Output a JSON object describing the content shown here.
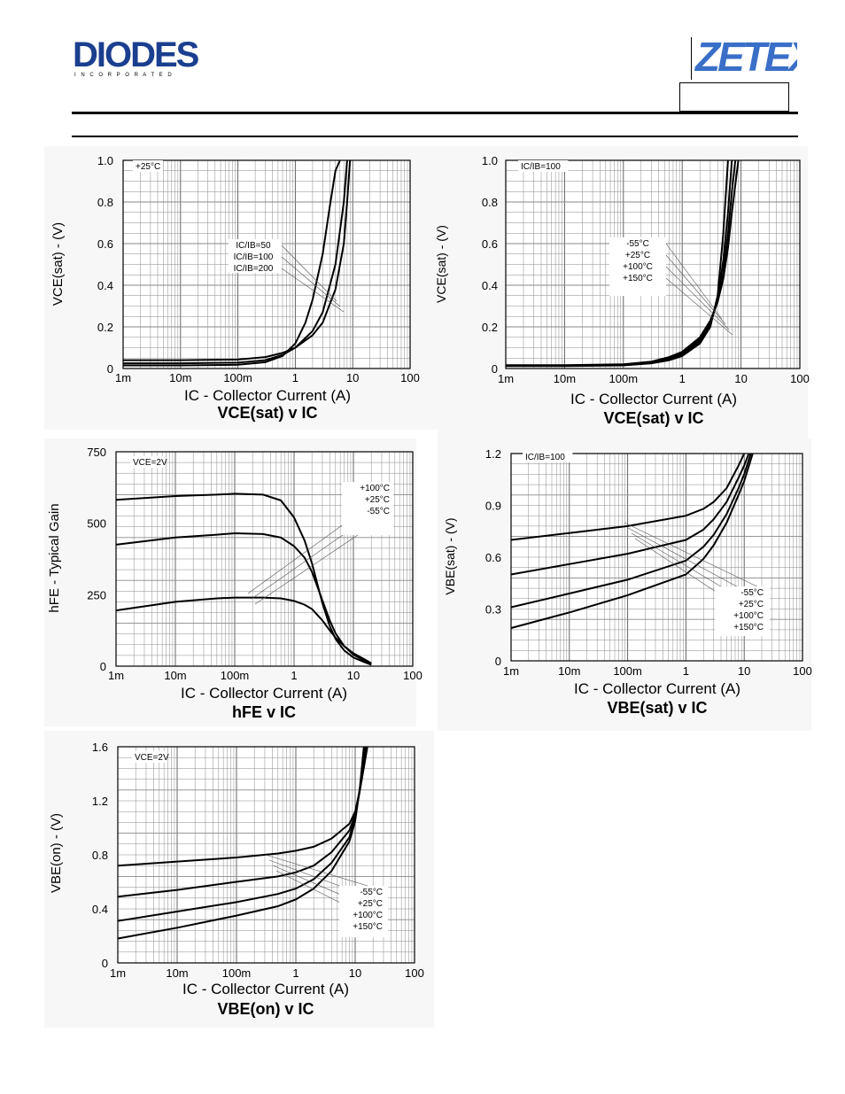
{
  "header": {
    "brand_left": "DIODES",
    "brand_left_sub": "I N C O R P O R A T E D",
    "brand_right": "ZETEX",
    "brand_color_left": "#1b3f8f",
    "brand_color_right": "#3a6fc8"
  },
  "charts": [
    {
      "caption_main": "VCE(sat)",
      "caption_tail": " v IC",
      "ylabel": "VCE(sat) - (V)",
      "xlabel": "IC - Collector Current (A)",
      "condition": "+25°C",
      "yticks": [
        "1.0",
        "0.8",
        "0.6",
        "0.4",
        "0.2",
        "0"
      ],
      "xticks": [
        "1m",
        "10m",
        "100m",
        "1",
        "10",
        "100"
      ],
      "legend": [
        "IC/IB=50",
        "IC/IB=100",
        "IC/IB=200"
      ]
    },
    {
      "caption_main": "VCE(sat)",
      "caption_tail": " v IC",
      "ylabel": "VCE(sat) - (V)",
      "xlabel": "IC - Collector Current (A)",
      "condition": "IC/IB=100",
      "yticks": [
        "1.0",
        "0.8",
        "0.6",
        "0.4",
        "0.2",
        "0"
      ],
      "xticks": [
        "1m",
        "10m",
        "100m",
        "1",
        "10",
        "100"
      ],
      "legend": [
        "-55°C",
        "+25°C",
        "+100°C",
        "+150°C"
      ]
    },
    {
      "caption_main": "hFE",
      "caption_tail": " v IC",
      "ylabel": "hFE - Typical Gain",
      "xlabel": "IC - Collector Current (A)",
      "condition": "VCE=2V",
      "yticks": [
        "750",
        "500",
        "250",
        "0"
      ],
      "xticks": [
        "1m",
        "10m",
        "100m",
        "1",
        "10",
        "100"
      ],
      "legend": [
        "+100°C",
        "+25°C",
        "-55°C"
      ]
    },
    {
      "caption_main": "VBE(sat)",
      "caption_tail": " v IC",
      "ylabel": "VBE(sat) - (V)",
      "xlabel": "IC - Collector Current (A)",
      "condition": "IC/IB=100",
      "yticks": [
        "1.2",
        "0.9",
        "0.6",
        "0.3",
        "0"
      ],
      "xticks": [
        "1m",
        "10m",
        "100m",
        "1",
        "10",
        "100"
      ],
      "legend": [
        "-55°C",
        "+25°C",
        "+100°C",
        "+150°C"
      ]
    },
    {
      "caption_main": "VBE(on)",
      "caption_tail": " v IC",
      "ylabel": "VBE(on) - (V)",
      "xlabel": "IC - Collector Current (A)",
      "condition": "VCE=2V",
      "yticks": [
        "1.6",
        "1.2",
        "0.8",
        "0.4",
        "0"
      ],
      "xticks": [
        "1m",
        "10m",
        "100m",
        "1",
        "10",
        "100"
      ],
      "legend": [
        "-55°C",
        "+25°C",
        "+100°C",
        "+150°C"
      ]
    }
  ],
  "chart_data": [
    {
      "type": "line",
      "title": "VCE(sat) v IC",
      "xlabel": "IC - Collector Current (A)",
      "ylabel": "VCE(sat) - (V)",
      "xscale": "log",
      "xlim": [
        0.001,
        100
      ],
      "ylim": [
        0,
        1.0
      ],
      "grid": true,
      "series": [
        {
          "name": "IC/IB=50",
          "x": [
            0.001,
            0.01,
            0.1,
            0.3,
            0.6,
            1,
            1.5,
            2,
            3,
            4,
            5,
            6
          ],
          "y": [
            0.015,
            0.015,
            0.018,
            0.03,
            0.06,
            0.12,
            0.22,
            0.33,
            0.55,
            0.78,
            0.95,
            1.0
          ]
        },
        {
          "name": "IC/IB=100",
          "x": [
            0.001,
            0.01,
            0.1,
            0.3,
            0.6,
            1,
            2,
            3,
            5,
            7,
            8
          ],
          "y": [
            0.025,
            0.025,
            0.028,
            0.04,
            0.065,
            0.1,
            0.18,
            0.27,
            0.5,
            0.8,
            1.0
          ]
        },
        {
          "name": "IC/IB=200",
          "x": [
            0.001,
            0.01,
            0.1,
            0.3,
            0.6,
            1,
            2,
            3,
            5,
            7,
            8,
            9
          ],
          "y": [
            0.04,
            0.04,
            0.043,
            0.055,
            0.075,
            0.1,
            0.16,
            0.22,
            0.38,
            0.6,
            0.8,
            1.0
          ]
        }
      ]
    },
    {
      "type": "line",
      "title": "VCE(sat) v IC",
      "xlabel": "IC - Collector Current (A)",
      "ylabel": "VCE(sat) - (V)",
      "xscale": "log",
      "xlim": [
        0.001,
        100
      ],
      "ylim": [
        0,
        1.0
      ],
      "grid": true,
      "series": [
        {
          "name": "-55°C",
          "x": [
            0.001,
            0.01,
            0.1,
            0.3,
            0.6,
            1,
            2,
            3,
            4,
            5,
            6
          ],
          "y": [
            0.012,
            0.012,
            0.015,
            0.025,
            0.04,
            0.06,
            0.12,
            0.2,
            0.35,
            0.65,
            1.0
          ]
        },
        {
          "name": "+25°C",
          "x": [
            0.001,
            0.01,
            0.1,
            0.3,
            0.6,
            1,
            2,
            3,
            4,
            5,
            6,
            7
          ],
          "y": [
            0.013,
            0.013,
            0.016,
            0.027,
            0.045,
            0.065,
            0.13,
            0.21,
            0.33,
            0.52,
            0.75,
            1.0
          ]
        },
        {
          "name": "+100°C",
          "x": [
            0.001,
            0.01,
            0.1,
            0.3,
            0.6,
            1,
            2,
            3,
            4,
            5,
            6,
            7,
            8
          ],
          "y": [
            0.015,
            0.015,
            0.018,
            0.03,
            0.05,
            0.072,
            0.14,
            0.22,
            0.32,
            0.46,
            0.65,
            0.85,
            1.0
          ]
        },
        {
          "name": "+150°C",
          "x": [
            0.001,
            0.01,
            0.1,
            0.3,
            0.6,
            1,
            2,
            3,
            4,
            5,
            6,
            7,
            9
          ],
          "y": [
            0.016,
            0.016,
            0.02,
            0.033,
            0.055,
            0.08,
            0.15,
            0.23,
            0.32,
            0.43,
            0.58,
            0.75,
            1.0
          ]
        }
      ]
    },
    {
      "type": "line",
      "title": "hFE v IC",
      "xlabel": "IC - Collector Current (A)",
      "ylabel": "hFE - Typical Gain",
      "xscale": "log",
      "xlim": [
        0.001,
        100
      ],
      "ylim": [
        0,
        750
      ],
      "grid": true,
      "series": [
        {
          "name": "+100°C",
          "x": [
            0.001,
            0.01,
            0.05,
            0.1,
            0.3,
            0.6,
            1,
            1.5,
            2,
            3,
            4,
            5,
            7,
            10,
            15,
            20
          ],
          "y": [
            582,
            595,
            600,
            603,
            600,
            580,
            520,
            440,
            360,
            220,
            140,
            95,
            55,
            30,
            15,
            5
          ]
        },
        {
          "name": "+25°C",
          "x": [
            0.001,
            0.01,
            0.05,
            0.1,
            0.3,
            0.6,
            1,
            1.5,
            2,
            3,
            4,
            5,
            7,
            10,
            15,
            20
          ],
          "y": [
            425,
            450,
            460,
            465,
            462,
            450,
            420,
            380,
            330,
            230,
            160,
            115,
            70,
            40,
            20,
            8
          ]
        },
        {
          "name": "-55°C",
          "x": [
            0.001,
            0.01,
            0.05,
            0.1,
            0.3,
            0.6,
            1,
            1.5,
            2,
            3,
            4,
            5,
            7,
            10,
            15,
            20
          ],
          "y": [
            195,
            225,
            237,
            240,
            240,
            237,
            228,
            215,
            200,
            160,
            125,
            100,
            70,
            45,
            25,
            10
          ]
        }
      ]
    },
    {
      "type": "line",
      "title": "VBE(sat) v IC",
      "xlabel": "IC - Collector Current (A)",
      "ylabel": "VBE(sat) - (V)",
      "xscale": "log",
      "xlim": [
        0.001,
        100
      ],
      "ylim": [
        0,
        1.2
      ],
      "grid": true,
      "series": [
        {
          "name": "-55°C",
          "x": [
            0.001,
            0.01,
            0.1,
            1,
            2,
            3,
            5,
            8,
            10
          ],
          "y": [
            0.7,
            0.74,
            0.78,
            0.84,
            0.88,
            0.92,
            1.0,
            1.13,
            1.2
          ]
        },
        {
          "name": "+25°C",
          "x": [
            0.001,
            0.01,
            0.1,
            1,
            2,
            3,
            5,
            8,
            10,
            12
          ],
          "y": [
            0.5,
            0.56,
            0.62,
            0.7,
            0.76,
            0.82,
            0.92,
            1.06,
            1.13,
            1.2
          ]
        },
        {
          "name": "+100°C",
          "x": [
            0.001,
            0.01,
            0.1,
            1,
            2,
            3,
            5,
            8,
            10,
            13
          ],
          "y": [
            0.31,
            0.39,
            0.47,
            0.58,
            0.66,
            0.73,
            0.85,
            1.0,
            1.08,
            1.2
          ]
        },
        {
          "name": "+150°C",
          "x": [
            0.001,
            0.01,
            0.1,
            1,
            2,
            3,
            5,
            8,
            10,
            14
          ],
          "y": [
            0.19,
            0.28,
            0.38,
            0.5,
            0.59,
            0.67,
            0.8,
            0.96,
            1.04,
            1.2
          ]
        }
      ]
    },
    {
      "type": "line",
      "title": "VBE(on) v IC",
      "xlabel": "IC - Collector Current (A)",
      "ylabel": "VBE(on) - (V)",
      "xscale": "log",
      "xlim": [
        0.001,
        100
      ],
      "ylim": [
        0,
        1.6
      ],
      "grid": true,
      "series": [
        {
          "name": "-55°C",
          "x": [
            0.001,
            0.01,
            0.1,
            0.5,
            1,
            2,
            4,
            8,
            10,
            12,
            14,
            16
          ],
          "y": [
            0.72,
            0.75,
            0.78,
            0.81,
            0.83,
            0.86,
            0.92,
            1.03,
            1.12,
            1.28,
            1.45,
            1.6
          ]
        },
        {
          "name": "+25°C",
          "x": [
            0.001,
            0.01,
            0.1,
            0.5,
            1,
            2,
            4,
            8,
            10,
            12,
            14,
            16
          ],
          "y": [
            0.49,
            0.54,
            0.6,
            0.64,
            0.67,
            0.72,
            0.82,
            0.98,
            1.1,
            1.28,
            1.45,
            1.6
          ]
        },
        {
          "name": "+100°C",
          "x": [
            0.001,
            0.01,
            0.1,
            0.5,
            1,
            2,
            4,
            8,
            10,
            12,
            14,
            15
          ],
          "y": [
            0.31,
            0.38,
            0.45,
            0.51,
            0.55,
            0.62,
            0.74,
            0.93,
            1.08,
            1.28,
            1.48,
            1.6
          ]
        },
        {
          "name": "+150°C",
          "x": [
            0.001,
            0.01,
            0.1,
            0.5,
            1,
            2,
            4,
            8,
            10,
            12,
            13,
            14
          ],
          "y": [
            0.18,
            0.26,
            0.35,
            0.42,
            0.47,
            0.55,
            0.68,
            0.9,
            1.05,
            1.3,
            1.45,
            1.6
          ]
        }
      ]
    }
  ]
}
